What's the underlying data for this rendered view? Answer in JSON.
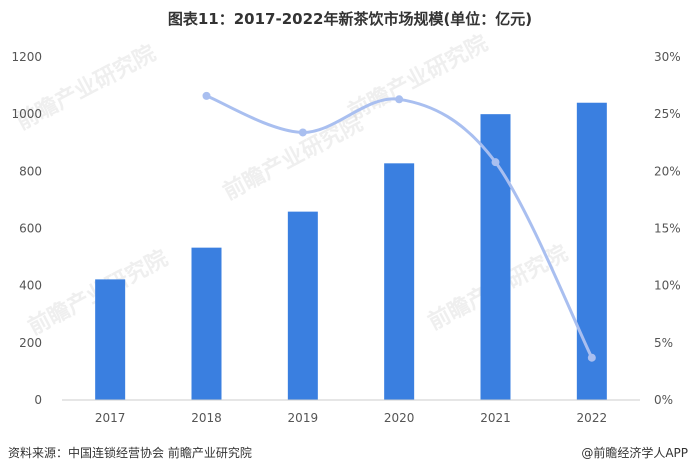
{
  "header": {
    "title": "图表11：2017-2022年新茶饮市场规模(单位：亿元)"
  },
  "footer": {
    "source": "资料来源：中国连锁经营协会 前瞻产业研究院",
    "brand": "@前瞻经济学人APP"
  },
  "watermark": {
    "text": "前瞻产业研究院"
  },
  "colors": {
    "bar": "#3a7fe0",
    "line": "#a9bff0",
    "axis": "#cccccc"
  },
  "chart_data": {
    "type": "bar",
    "title": "图表11：2017-2022年新茶饮市场规模(单位：亿元)",
    "categories": [
      "2017",
      "2018",
      "2019",
      "2020",
      "2021",
      "2022"
    ],
    "series": [
      {
        "values": [
          422,
          533,
          659,
          828,
          1000,
          1040
        ],
        "axis": "left",
        "type": "bar"
      },
      {
        "values": [
          null,
          26.6,
          23.4,
          26.3,
          20.8,
          3.7
        ],
        "axis": "right",
        "type": "line"
      }
    ],
    "ylim": [
      0,
      1200
    ],
    "yticks": [
      "0",
      "200",
      "400",
      "600",
      "800",
      "1000",
      "1200"
    ],
    "y2lim": [
      0,
      30
    ],
    "y2ticks": [
      "0%",
      "5%",
      "10%",
      "15%",
      "20%",
      "25%",
      "30%"
    ],
    "xlabel": "",
    "ylabel": "",
    "grid": false,
    "legend": "none"
  }
}
